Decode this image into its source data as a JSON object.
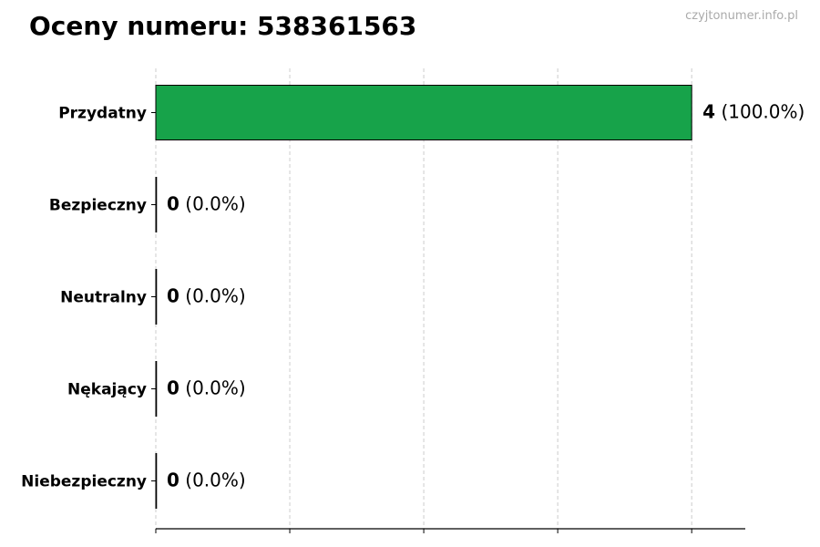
{
  "title": "Oceny numeru: 538361563",
  "watermark": "czyjtonumer.info.pl",
  "chart_data": {
    "type": "bar",
    "orientation": "horizontal",
    "title": "Oceny numeru: 538361563",
    "categories": [
      "Przydatny",
      "Bezpieczny",
      "Neutralny",
      "Nękający",
      "Niebezpieczny"
    ],
    "values": [
      4,
      0,
      0,
      0,
      0
    ],
    "labels": [
      {
        "count": "4",
        "pct": "(100.0%)"
      },
      {
        "count": "0",
        "pct": "(0.0%)"
      },
      {
        "count": "0",
        "pct": "(0.0%)"
      },
      {
        "count": "0",
        "pct": "(0.0%)"
      },
      {
        "count": "0",
        "pct": "(0.0%)"
      }
    ],
    "xlim": [
      0,
      4.4
    ],
    "xticks": [
      0,
      1,
      2,
      3,
      4
    ],
    "xtick_labels_shown": false,
    "grid": "x dashed",
    "bar_color": "#17a34a",
    "xlabel": "",
    "ylabel": ""
  }
}
